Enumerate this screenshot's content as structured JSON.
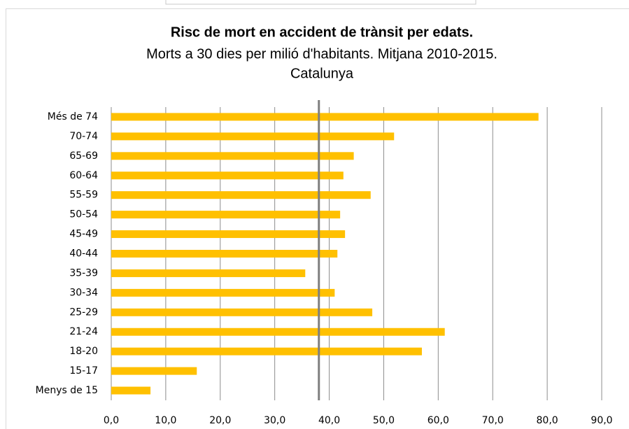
{
  "chart_data": {
    "type": "bar",
    "orientation": "horizontal",
    "title": "Risc de mort en accident de trànsit per edats.",
    "subtitle_lines": [
      "Morts a 30 dies per milió d'habitants. Mitjana 2010-2015.",
      "Catalunya"
    ],
    "categories": [
      "Més de 74",
      "70-74",
      "65-69",
      "60-64",
      "55-59",
      "50-54",
      "45-49",
      "40-44",
      "35-39",
      "30-34",
      "25-29",
      "21-24",
      "18-20",
      "15-17",
      "Menys de 15"
    ],
    "values": [
      78.4,
      51.9,
      44.5,
      42.6,
      47.6,
      42.0,
      42.9,
      41.5,
      35.6,
      41.0,
      47.9,
      61.2,
      57.0,
      15.7,
      7.2
    ],
    "color": "#ffc000",
    "reference_value": 38.1,
    "reference_color": "#7f7f7f",
    "xlim": [
      0,
      90
    ],
    "xticks": [
      {
        "value": 0,
        "label": "0,0"
      },
      {
        "value": 10,
        "label": "10,0"
      },
      {
        "value": 20,
        "label": "20,0"
      },
      {
        "value": 30,
        "label": "30,0"
      },
      {
        "value": 40,
        "label": "40,0"
      },
      {
        "value": 50,
        "label": "50,0"
      },
      {
        "value": 60,
        "label": "60,0"
      },
      {
        "value": 70,
        "label": "70,0"
      },
      {
        "value": 80,
        "label": "80,0"
      },
      {
        "value": 90,
        "label": "90,0"
      }
    ],
    "grid": true
  }
}
